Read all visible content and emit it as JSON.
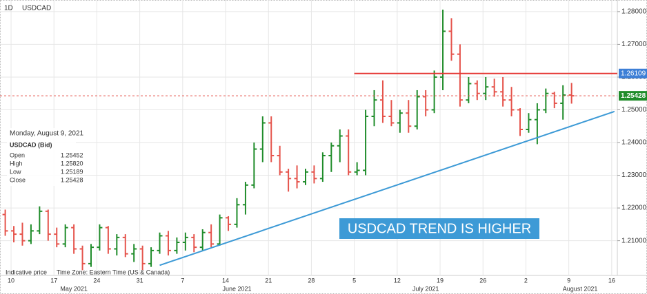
{
  "chart_data": {
    "type": "ohlc",
    "timeframe": "1D",
    "title": "USDCAD",
    "x": [
      "2021-05-07",
      "2021-05-10",
      "2021-05-11",
      "2021-05-12",
      "2021-05-13",
      "2021-05-14",
      "2021-05-17",
      "2021-05-18",
      "2021-05-19",
      "2021-05-20",
      "2021-05-21",
      "2021-05-24",
      "2021-05-25",
      "2021-05-26",
      "2021-05-27",
      "2021-05-28",
      "2021-05-31",
      "2021-06-01",
      "2021-06-02",
      "2021-06-03",
      "2021-06-04",
      "2021-06-07",
      "2021-06-08",
      "2021-06-09",
      "2021-06-10",
      "2021-06-11",
      "2021-06-14",
      "2021-06-15",
      "2021-06-16",
      "2021-06-17",
      "2021-06-18",
      "2021-06-21",
      "2021-06-22",
      "2021-06-23",
      "2021-06-24",
      "2021-06-25",
      "2021-06-28",
      "2021-06-29",
      "2021-06-30",
      "2021-07-01",
      "2021-07-02",
      "2021-07-05",
      "2021-07-06",
      "2021-07-07",
      "2021-07-08",
      "2021-07-09",
      "2021-07-12",
      "2021-07-13",
      "2021-07-14",
      "2021-07-15",
      "2021-07-16",
      "2021-07-19",
      "2021-07-20",
      "2021-07-21",
      "2021-07-22",
      "2021-07-23",
      "2021-07-26",
      "2021-07-27",
      "2021-07-28",
      "2021-07-29",
      "2021-07-30",
      "2021-08-02",
      "2021-08-03",
      "2021-08-04",
      "2021-08-05",
      "2021-08-06",
      "2021-08-09"
    ],
    "open": [
      1.218,
      1.213,
      1.212,
      1.21,
      1.213,
      1.219,
      1.212,
      1.209,
      1.214,
      1.2075,
      1.203,
      1.208,
      1.214,
      1.2075,
      1.211,
      1.206,
      1.2075,
      1.203,
      1.207,
      1.2115,
      1.207,
      1.2095,
      1.211,
      1.208,
      1.2125,
      1.209,
      1.217,
      1.215,
      1.221,
      1.227,
      1.238,
      1.246,
      1.236,
      1.231,
      1.229,
      1.228,
      1.231,
      1.229,
      1.236,
      1.239,
      1.242,
      1.231,
      1.2315,
      1.248,
      1.253,
      1.248,
      1.246,
      1.249,
      1.245,
      1.254,
      1.25,
      1.26,
      1.274,
      1.267,
      1.253,
      1.258,
      1.255,
      1.257,
      1.2555,
      1.253,
      1.25,
      1.244,
      1.247,
      1.25,
      1.255,
      1.252,
      1.25452
    ],
    "high": [
      1.2195,
      1.2145,
      1.2155,
      1.215,
      1.2205,
      1.2195,
      1.214,
      1.215,
      1.215,
      1.2085,
      1.209,
      1.215,
      1.2145,
      1.212,
      1.212,
      1.209,
      1.2085,
      1.208,
      1.2125,
      1.213,
      1.211,
      1.2125,
      1.212,
      1.2135,
      1.215,
      1.218,
      1.2175,
      1.223,
      1.228,
      1.24,
      1.248,
      1.248,
      1.239,
      1.232,
      1.233,
      1.232,
      1.233,
      1.237,
      1.24,
      1.244,
      1.244,
      1.234,
      1.25,
      1.256,
      1.259,
      1.253,
      1.25,
      1.253,
      1.256,
      1.256,
      1.262,
      1.2806,
      1.278,
      1.27,
      1.26,
      1.259,
      1.26,
      1.2595,
      1.26,
      1.257,
      1.2505,
      1.249,
      1.252,
      1.2565,
      1.2555,
      1.2575,
      1.2582
    ],
    "low": [
      1.2115,
      1.2095,
      1.2085,
      1.209,
      1.212,
      1.21,
      1.208,
      1.208,
      1.206,
      1.201,
      1.202,
      1.207,
      1.206,
      1.2055,
      1.205,
      1.2035,
      1.201,
      1.202,
      1.206,
      1.2055,
      1.206,
      1.207,
      1.2065,
      1.207,
      1.208,
      1.2085,
      1.213,
      1.214,
      1.218,
      1.226,
      1.234,
      1.234,
      1.23,
      1.225,
      1.226,
      1.227,
      1.2275,
      1.228,
      1.231,
      1.234,
      1.23,
      1.23,
      1.23,
      1.245,
      1.246,
      1.245,
      1.243,
      1.243,
      1.244,
      1.248,
      1.249,
      1.256,
      1.265,
      1.251,
      1.252,
      1.253,
      1.253,
      1.254,
      1.251,
      1.248,
      1.242,
      1.243,
      1.2395,
      1.249,
      1.2505,
      1.247,
      1.25189
    ],
    "close": [
      1.213,
      1.212,
      1.21,
      1.213,
      1.219,
      1.212,
      1.209,
      1.214,
      1.2075,
      1.203,
      1.208,
      1.214,
      1.2075,
      1.211,
      1.206,
      1.2075,
      1.203,
      1.207,
      1.2115,
      1.207,
      1.2095,
      1.211,
      1.208,
      1.2125,
      1.209,
      1.217,
      1.215,
      1.221,
      1.227,
      1.238,
      1.246,
      1.236,
      1.231,
      1.229,
      1.228,
      1.231,
      1.229,
      1.236,
      1.239,
      1.242,
      1.231,
      1.2315,
      1.248,
      1.253,
      1.248,
      1.246,
      1.249,
      1.245,
      1.254,
      1.25,
      1.26,
      1.274,
      1.267,
      1.253,
      1.258,
      1.255,
      1.257,
      1.2555,
      1.253,
      1.25,
      1.244,
      1.247,
      1.25,
      1.255,
      1.252,
      1.2545,
      1.25428
    ],
    "up_color": "#1f8c2a",
    "down_color": "#e5534b",
    "ylim": [
      1.1994,
      1.2825
    ],
    "yticks": [
      {
        "value": 1.21,
        "label": "1.21000"
      },
      {
        "value": 1.22,
        "label": "1.22000"
      },
      {
        "value": 1.23,
        "label": "1.23000"
      },
      {
        "value": 1.24,
        "label": "1.24000"
      },
      {
        "value": 1.25,
        "label": "1.25000"
      },
      {
        "value": 1.26,
        "label": "1.26000"
      },
      {
        "value": 1.27,
        "label": "1.27000"
      },
      {
        "value": 1.28,
        "label": "1.28000"
      }
    ],
    "xticks": [
      {
        "value": "2021-05-10",
        "label": "10"
      },
      {
        "value": "2021-05-17",
        "label": "17"
      },
      {
        "value": "2021-05-24",
        "label": "24"
      },
      {
        "value": "2021-05-31",
        "label": "31"
      },
      {
        "value": "2021-06-07",
        "label": "7"
      },
      {
        "value": "2021-06-14",
        "label": "14"
      },
      {
        "value": "2021-06-21",
        "label": "21"
      },
      {
        "value": "2021-06-28",
        "label": "28"
      },
      {
        "value": "2021-07-05",
        "label": "5"
      },
      {
        "value": "2021-07-12",
        "label": "12"
      },
      {
        "value": "2021-07-19",
        "label": "19"
      },
      {
        "value": "2021-07-26",
        "label": "26"
      },
      {
        "value": "2021-08-02",
        "label": "2"
      },
      {
        "value": "2021-08-09",
        "label": "9"
      },
      {
        "value": "2021-08-16",
        "label": "16"
      }
    ],
    "months": [
      {
        "value": "2021-05-19",
        "label": "May 2021"
      },
      {
        "value": "2021-06-15",
        "label": "June 2021"
      },
      {
        "value": "2021-07-15",
        "label": "July 2021"
      },
      {
        "value": "2021-08-10",
        "label": "August 2021"
      }
    ],
    "grid": true,
    "resistance": {
      "value": 1.26109,
      "start": "2021-07-05",
      "color": "#e53935"
    },
    "trendline": {
      "x": [
        "2021-06-02",
        "2021-08-16"
      ],
      "values": [
        1.2025,
        1.2495
      ],
      "color": "#3d9ad6"
    },
    "annotation": "USDCAD TREND IS HIGHER",
    "info": {
      "date": "Monday, August 9, 2021",
      "instrument": "USDCAD (Bid)",
      "fields": [
        "Open",
        "High",
        "Low",
        "Close"
      ],
      "values": [
        "1.25452",
        "1.25820",
        "1.25189",
        "1.25428"
      ]
    },
    "footnote": "Indicative price",
    "timezone": "Time Zone: Eastern Time (US & Canada)"
  }
}
